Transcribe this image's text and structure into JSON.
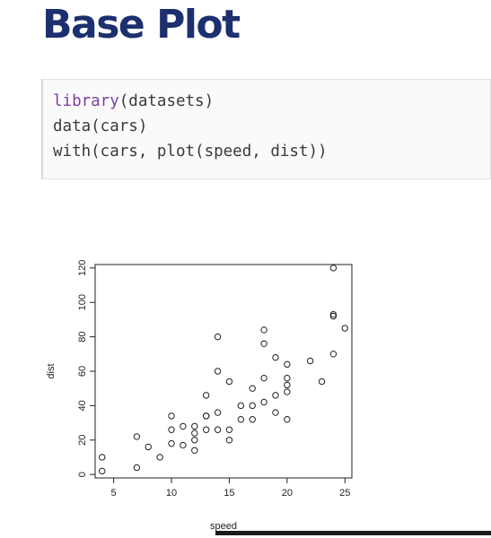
{
  "slide": {
    "title": "Base Plot"
  },
  "code": {
    "line1_fn": "library",
    "line1_args": "(datasets)",
    "line2": "data(cars)",
    "line3": "with(cars, plot(speed, dist))"
  },
  "colors": {
    "title": "#1c2f6e",
    "keyword": "#7b3fa0",
    "code_text": "#3a3a3a",
    "code_background": "#fafafa"
  },
  "chart_data": {
    "type": "scatter",
    "title": "",
    "xlabel": "speed",
    "ylabel": "dist",
    "xlim": [
      3.4,
      25.6
    ],
    "ylim": [
      -2,
      122
    ],
    "xticks": [
      5,
      10,
      15,
      20,
      25
    ],
    "yticks": [
      0,
      20,
      40,
      60,
      80,
      100,
      120
    ],
    "grid": false,
    "legend": "none",
    "marker": "open-circle",
    "points": [
      [
        4,
        2
      ],
      [
        4,
        10
      ],
      [
        7,
        4
      ],
      [
        7,
        22
      ],
      [
        8,
        16
      ],
      [
        9,
        10
      ],
      [
        10,
        18
      ],
      [
        10,
        26
      ],
      [
        10,
        34
      ],
      [
        11,
        17
      ],
      [
        11,
        28
      ],
      [
        12,
        14
      ],
      [
        12,
        20
      ],
      [
        12,
        24
      ],
      [
        12,
        28
      ],
      [
        13,
        26
      ],
      [
        13,
        34
      ],
      [
        13,
        34
      ],
      [
        13,
        46
      ],
      [
        14,
        26
      ],
      [
        14,
        36
      ],
      [
        14,
        60
      ],
      [
        14,
        80
      ],
      [
        15,
        20
      ],
      [
        15,
        26
      ],
      [
        15,
        54
      ],
      [
        16,
        32
      ],
      [
        16,
        40
      ],
      [
        17,
        32
      ],
      [
        17,
        40
      ],
      [
        17,
        50
      ],
      [
        18,
        42
      ],
      [
        18,
        56
      ],
      [
        18,
        76
      ],
      [
        18,
        84
      ],
      [
        19,
        36
      ],
      [
        19,
        46
      ],
      [
        19,
        68
      ],
      [
        20,
        32
      ],
      [
        20,
        48
      ],
      [
        20,
        52
      ],
      [
        20,
        56
      ],
      [
        20,
        64
      ],
      [
        22,
        66
      ],
      [
        23,
        54
      ],
      [
        24,
        70
      ],
      [
        24,
        92
      ],
      [
        24,
        93
      ],
      [
        24,
        120
      ],
      [
        25,
        85
      ]
    ]
  }
}
